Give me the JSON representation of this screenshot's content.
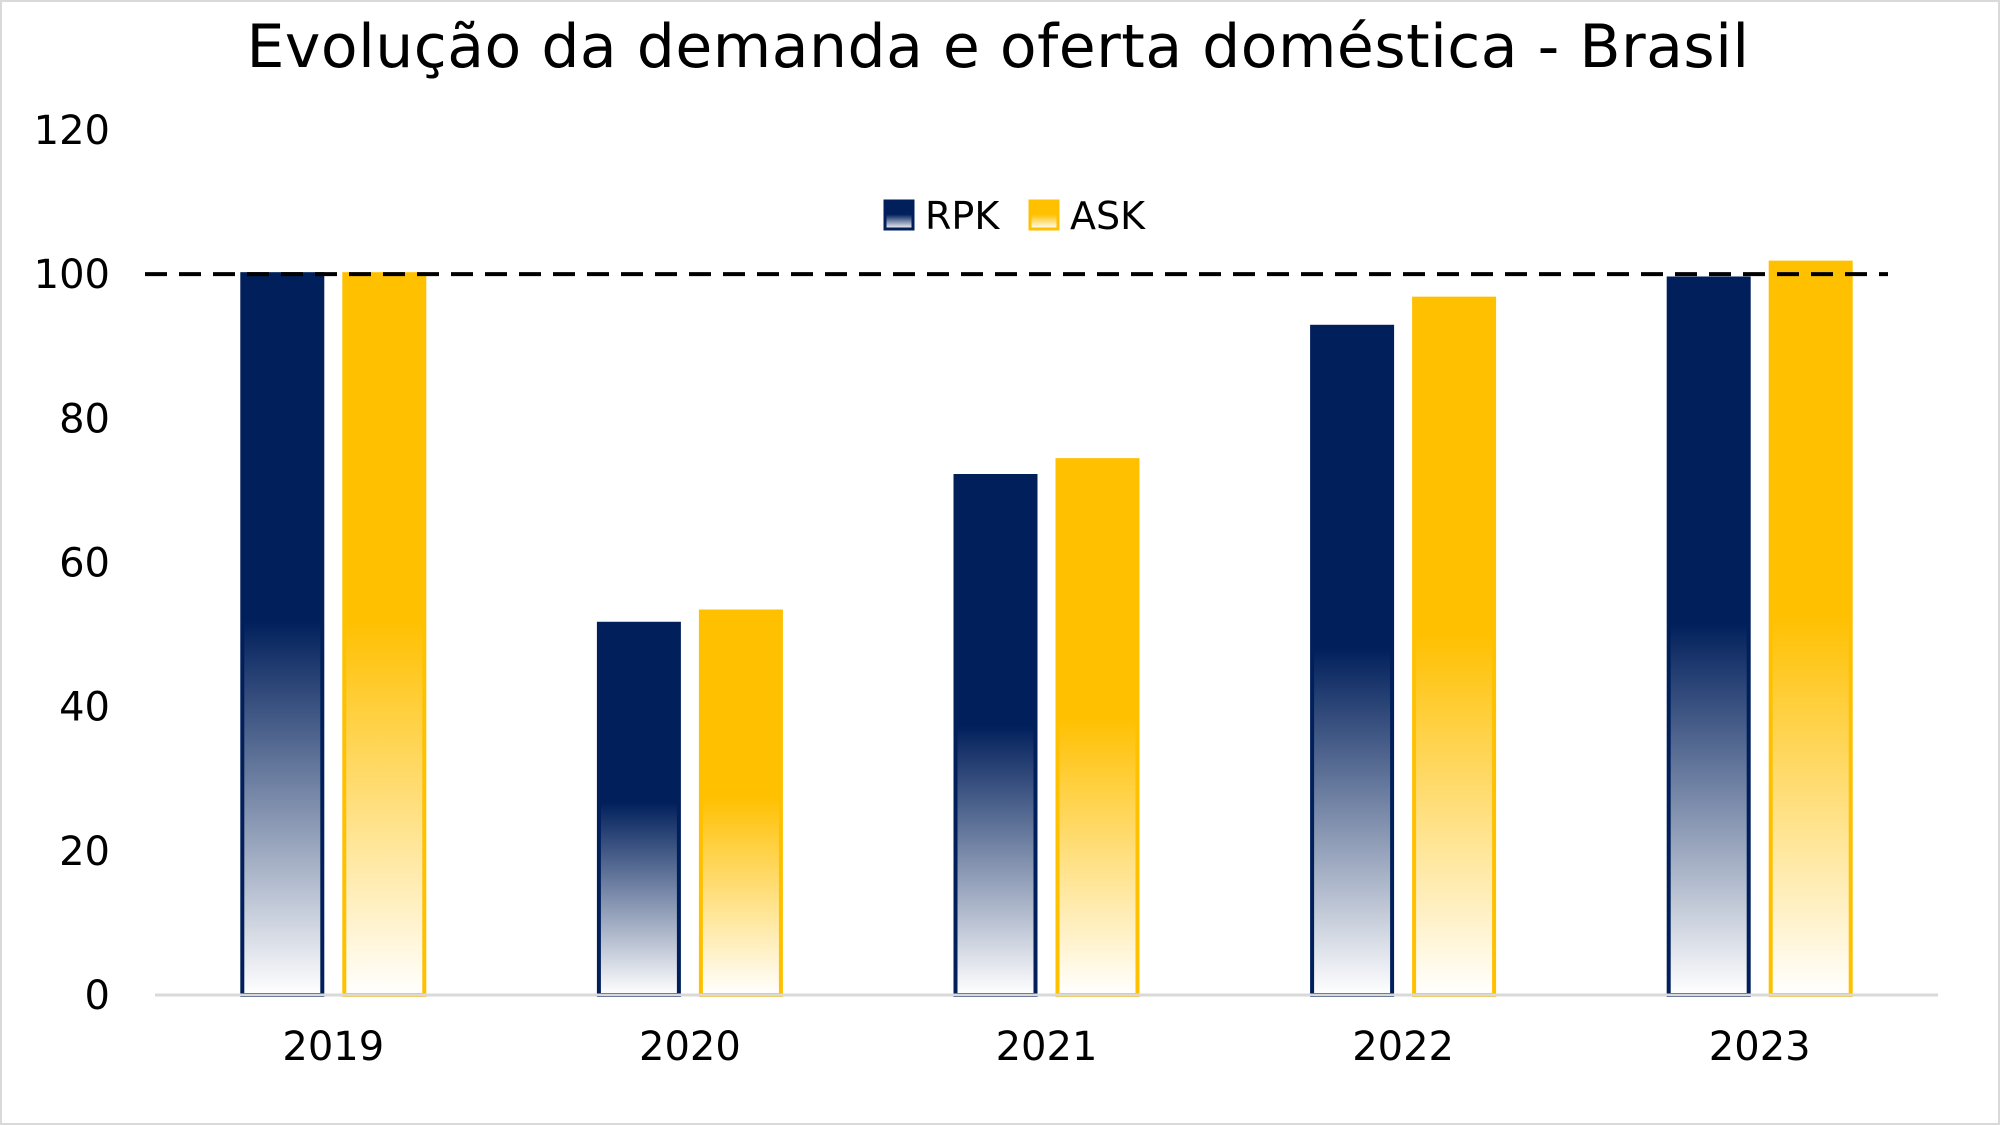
{
  "chart_data": {
    "type": "bar",
    "title": "Evolução da demanda e oferta doméstica - Brasil",
    "categories": [
      "2019",
      "2020",
      "2021",
      "2022",
      "2023"
    ],
    "series": [
      {
        "name": "RPK",
        "values": [
          100,
          51.5,
          72,
          92.7,
          99.4
        ],
        "color": "#001f5b"
      },
      {
        "name": "ASK",
        "values": [
          100,
          53.2,
          74.2,
          96.6,
          101.6
        ],
        "color": "#ffc000"
      }
    ],
    "ylim": [
      0,
      120
    ],
    "yticks": [
      0,
      20,
      40,
      60,
      80,
      100,
      120
    ],
    "reference_line": {
      "value": 100,
      "style": "dashed",
      "color": "#000000"
    },
    "legend": {
      "placement": "top-center"
    },
    "grid": false
  }
}
